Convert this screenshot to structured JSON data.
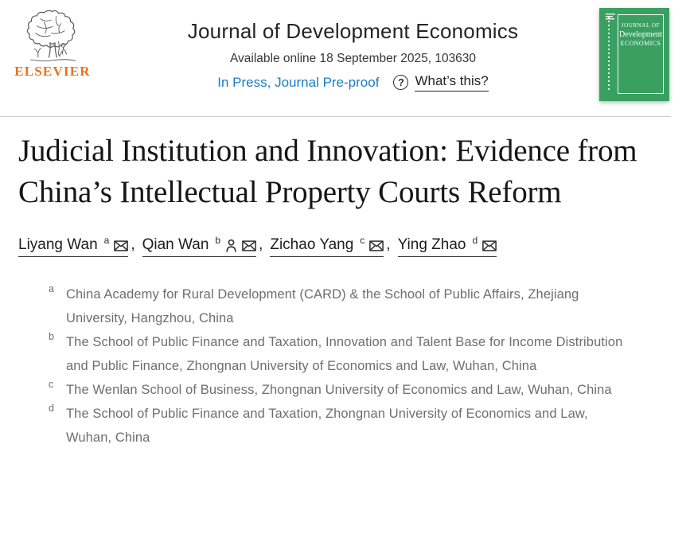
{
  "header": {
    "elsevier_wordmark": "ELSEVIER",
    "journal_title": "Journal of Development Economics",
    "availability": "Available online 18 September 2025, 103630",
    "inpress_link": "In Press, Journal Pre-proof",
    "whats_this": "What’s this?",
    "question_mark": "?",
    "cover": {
      "line1": "JOURNAL OF",
      "line2": "Development",
      "line3": "ECONOMICS"
    }
  },
  "article": {
    "title": "Judicial Institution and Innovation: Evidence from China’s Intellectual Property Courts Reform"
  },
  "authors": [
    {
      "name": "Liyang Wan",
      "sup": "a",
      "icons": [
        "envelope"
      ]
    },
    {
      "name": "Qian Wan",
      "sup": "b",
      "icons": [
        "person",
        "envelope"
      ]
    },
    {
      "name": "Zichao Yang",
      "sup": "c",
      "icons": [
        "envelope"
      ]
    },
    {
      "name": "Ying Zhao",
      "sup": "d",
      "icons": [
        "envelope"
      ]
    }
  ],
  "author_separator": ",",
  "affiliations": [
    {
      "sup": "a",
      "text": "China Academy for Rural Development (CARD) & the School of Public Affairs, Zhejiang University, Hangzhou, China"
    },
    {
      "sup": "b",
      "text": "The School of Public Finance and Taxation, Innovation and Talent Base for Income Distribution and Public Finance, Zhongnan University of Economics and Law, Wuhan, China"
    },
    {
      "sup": "c",
      "text": "The Wenlan School of Business, Zhongnan University of Economics and Law, Wuhan, China"
    },
    {
      "sup": "d",
      "text": "The School of Public Finance and Taxation, Zhongnan University of Economics and Law, Wuhan, China"
    }
  ],
  "colors": {
    "link_blue": "#1b7dc2",
    "elsevier_orange": "#e9711c",
    "cover_green": "#3aa062",
    "affiliation_gray": "#6e6e6e",
    "divider_gray": "#cccccc"
  }
}
